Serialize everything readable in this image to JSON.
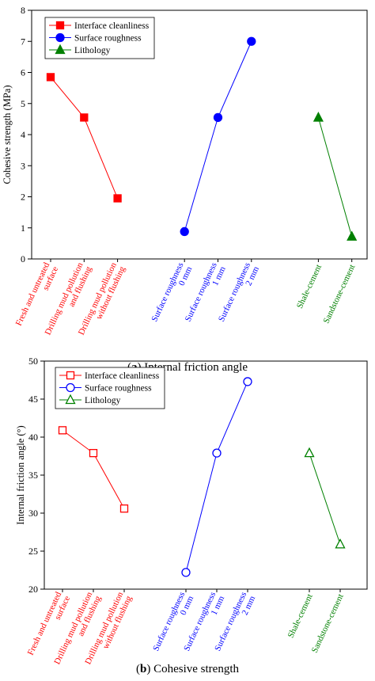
{
  "chart_data": [
    {
      "type": "line",
      "panel": "a",
      "caption_letter": "a",
      "caption_text": "Internal friction angle",
      "ylabel": "Cohesive strength (MPa)",
      "ylim": [
        0,
        8
      ],
      "yticks": [
        0,
        1,
        2,
        3,
        4,
        5,
        6,
        7,
        8
      ],
      "marker_fill": "filled",
      "legend_position": "top-left",
      "categories": [
        "Fresh and untreated surface",
        "Drilling mud pollution and flushing",
        "Drilling mud pollution without flushing",
        "Surface roughness 0 mm",
        "Surface roughness 1 mm",
        "Surface roughness 2 mm",
        "Shale-cement",
        "Sandstone-cement"
      ],
      "series": [
        {
          "name": "Interface cleanliness",
          "color": "#ff0000",
          "marker": "square",
          "x": [
            0,
            1,
            2
          ],
          "values": [
            5.85,
            4.55,
            1.95
          ]
        },
        {
          "name": "Surface roughness",
          "color": "#0000ff",
          "marker": "circle",
          "x": [
            4,
            5,
            6
          ],
          "values": [
            0.88,
            4.55,
            7.0
          ]
        },
        {
          "name": "Lithology",
          "color": "#008000",
          "marker": "triangle",
          "x": [
            8,
            9
          ],
          "values": [
            4.55,
            0.72
          ]
        }
      ]
    },
    {
      "type": "line",
      "panel": "b",
      "caption_letter": "b",
      "caption_text": "Cohesive strength",
      "ylabel": "Internal friction angle (°)",
      "ylim": [
        20,
        50
      ],
      "yticks": [
        20,
        25,
        30,
        35,
        40,
        45,
        50
      ],
      "marker_fill": "hollow",
      "legend_position": "top-left",
      "categories": [
        "Fresh and untreated surface",
        "Drilling mud pollution and flushing",
        "Drilling mud pollution without flushing",
        "Surface roughness 0 mm",
        "Surface roughness 1 mm",
        "Surface roughness 2 mm",
        "Shale-cement",
        "Sandstone-cement"
      ],
      "series": [
        {
          "name": "Interface cleanliness",
          "color": "#ff0000",
          "marker": "square",
          "x": [
            0,
            1,
            2
          ],
          "values": [
            40.9,
            37.9,
            30.6
          ]
        },
        {
          "name": "Surface roughness",
          "color": "#0000ff",
          "marker": "circle",
          "x": [
            4,
            5,
            6
          ],
          "values": [
            22.2,
            37.9,
            47.3
          ]
        },
        {
          "name": "Lithology",
          "color": "#008000",
          "marker": "triangle",
          "x": [
            8,
            9
          ],
          "values": [
            37.9,
            25.9
          ]
        }
      ]
    }
  ],
  "category_label_lines": [
    [
      "Fresh and untreated",
      "surface"
    ],
    [
      "Drilling mud pollution",
      "and flushing"
    ],
    [
      "Drilling mud pollution",
      "without flushing"
    ],
    [
      "Surface roughness",
      "0 mm"
    ],
    [
      "Surface roughness",
      "1 mm"
    ],
    [
      "Surface roughness",
      "2 mm"
    ],
    [
      "Shale-cement"
    ],
    [
      "Sandstone-cement"
    ]
  ],
  "category_series_index": [
    0,
    0,
    0,
    1,
    1,
    1,
    2,
    2
  ]
}
